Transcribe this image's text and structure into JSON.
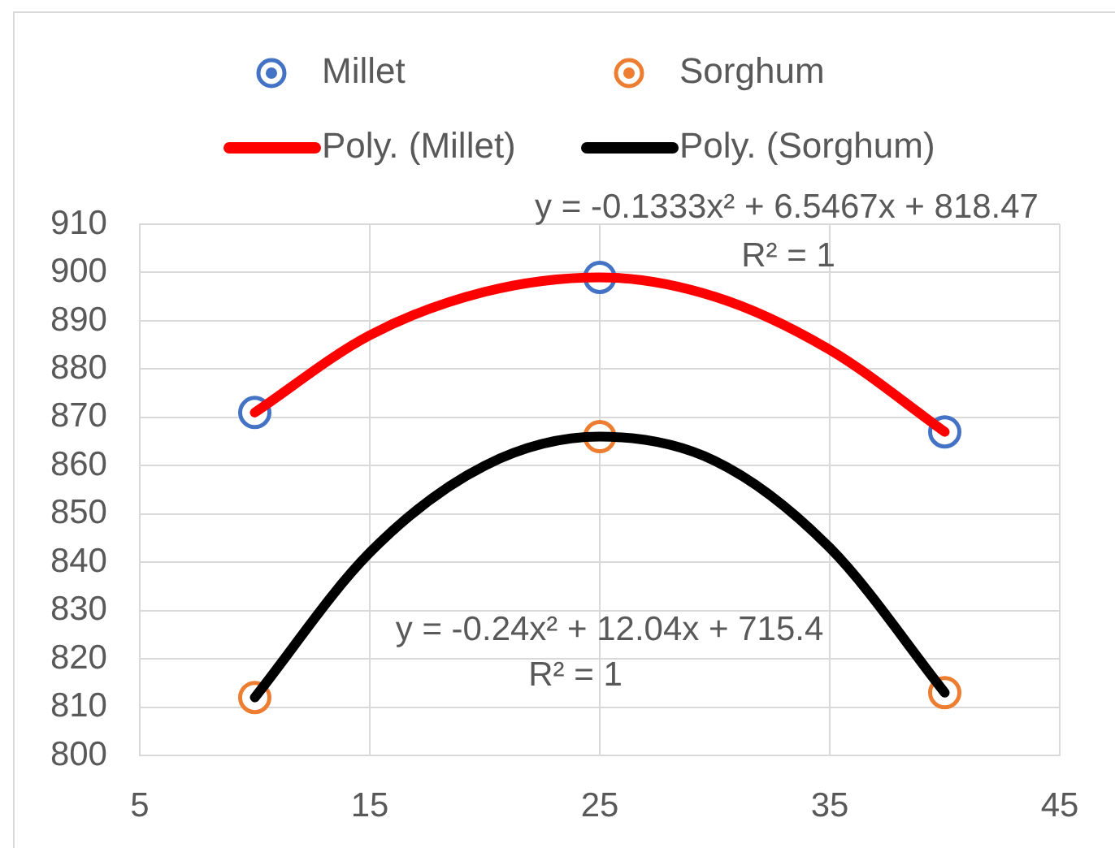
{
  "chart_data": {
    "type": "scatter",
    "x": [
      10,
      25,
      40
    ],
    "series": [
      {
        "name": "Millet",
        "color": "#4472c4",
        "marker": "circle",
        "values": [
          871,
          899,
          867
        ]
      },
      {
        "name": "Sorghum",
        "color": "#ed7d31",
        "marker": "circle",
        "values": [
          812,
          866,
          813
        ]
      },
      {
        "name": "Poly. (Millet)",
        "type": "line",
        "color": "#ff0000",
        "marker": "none",
        "x": [
          10,
          15,
          20,
          25,
          30,
          35,
          40
        ],
        "values": [
          871,
          887,
          896,
          899,
          895,
          884,
          867
        ]
      },
      {
        "name": "Poly. (Sorghum)",
        "type": "line",
        "color": "#000000",
        "marker": "none",
        "x": [
          10,
          15,
          20,
          25,
          30,
          35,
          40
        ],
        "values": [
          812,
          842,
          860,
          866,
          861,
          843,
          813
        ]
      }
    ],
    "xlim": [
      5,
      45
    ],
    "xticks": [
      5,
      15,
      25,
      35,
      45
    ],
    "ylim": [
      800,
      910
    ],
    "yticks": [
      800,
      810,
      820,
      830,
      840,
      850,
      860,
      870,
      880,
      890,
      900,
      910
    ],
    "grid": true,
    "legend": "top",
    "annotations": [
      "y = -0.1333x² + 6.5467x + 818.47",
      "R² = 1",
      "y = -0.24x² + 12.04x + 715.4",
      "R² = 1"
    ]
  }
}
